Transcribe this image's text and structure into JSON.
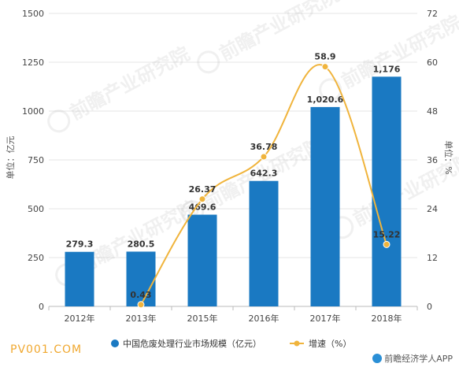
{
  "chart_data": {
    "type": "bar",
    "categories": [
      "2012年",
      "2013年",
      "2015年",
      "2016年",
      "2017年",
      "2018年"
    ],
    "series": [
      {
        "name": "中国危废处理行业市场规模（亿元）",
        "type": "bar",
        "axis": "left",
        "values": [
          279.3,
          280.5,
          469.6,
          642.3,
          1020.6,
          1176
        ],
        "labels": [
          "279.3",
          "280.5",
          "469.6",
          "642.3",
          "1,020.6",
          "1,176"
        ],
        "color": "#1a79c2"
      },
      {
        "name": "增速（%）",
        "type": "line",
        "axis": "right",
        "values": [
          null,
          0.43,
          26.37,
          36.78,
          58.9,
          15.22
        ],
        "labels": [
          "",
          "0.43",
          "26.37",
          "36.78",
          "58.9",
          "15.22"
        ],
        "color": "#f0b43c"
      }
    ],
    "ylabel": "单位：亿元",
    "ylabel_right": "单位：%",
    "ylim": [
      0,
      1500
    ],
    "ylim_right": [
      0,
      72
    ],
    "yticks": [
      "0",
      "250",
      "500",
      "750",
      "1000",
      "1250",
      "1500"
    ],
    "yticks_right": [
      "0",
      "12",
      "24",
      "36",
      "48",
      "60",
      "72"
    ],
    "grid": true,
    "legend_position": "bottom"
  },
  "footer": {
    "source": "PV001.COM",
    "brand": "前瞻经济学人APP"
  },
  "watermark": "前瞻产业研究院"
}
